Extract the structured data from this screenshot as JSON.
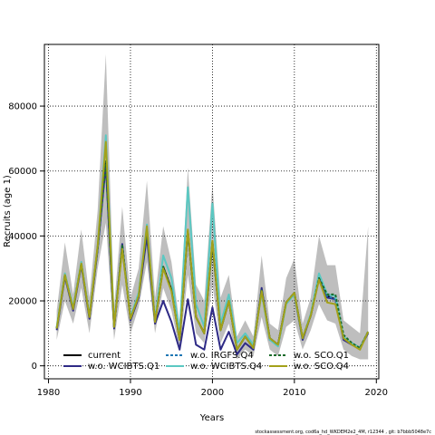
{
  "chart_data": {
    "type": "line",
    "title": "",
    "xlabel": "Years",
    "ylabel": "Recruits (age 1)",
    "xlim": [
      1979.5,
      2020.3
    ],
    "ylim": [
      -4000,
      99000
    ],
    "x_ticks": [
      1980,
      1990,
      2000,
      2010,
      2020
    ],
    "y_ticks": [
      0,
      20000,
      40000,
      60000,
      80000
    ],
    "grid": true,
    "legend_position": "bottom",
    "x": [
      1981,
      1982,
      1983,
      1984,
      1985,
      1986,
      1987,
      1988,
      1989,
      1990,
      1991,
      1992,
      1993,
      1994,
      1995,
      1996,
      1997,
      1998,
      1999,
      2000,
      2001,
      2002,
      2003,
      2004,
      2005,
      2006,
      2007,
      2008,
      2009,
      2010,
      2011,
      2012,
      2013,
      2014,
      2015,
      2016,
      2017,
      2018,
      2019
    ],
    "band": {
      "color": "#bebebe",
      "upper": [
        17000,
        38000,
        22000,
        42000,
        21000,
        48000,
        96000,
        18000,
        49000,
        21000,
        30000,
        57000,
        21000,
        43000,
        32000,
        13000,
        61000,
        25000,
        20000,
        56000,
        21000,
        28000,
        9000,
        14000,
        9000,
        34000,
        13000,
        11000,
        27000,
        33000,
        13000,
        21000,
        40000,
        31000,
        31000,
        14000,
        12000,
        10000,
        43000
      ],
      "lower": [
        8000,
        20000,
        13000,
        24000,
        10000,
        30000,
        44000,
        8000,
        25000,
        10000,
        18000,
        32000,
        10000,
        24000,
        17000,
        5000,
        28000,
        10000,
        7000,
        25000,
        7000,
        13000,
        2000,
        5000,
        3000,
        15000,
        5000,
        3000,
        12000,
        14000,
        5000,
        11000,
        19000,
        14000,
        13000,
        5000,
        3000,
        2000,
        2000
      ]
    },
    "series": [
      {
        "name": "current",
        "color": "#000000",
        "dash": "",
        "values": [
          11500,
          28000,
          17500,
          31500,
          15000,
          36500,
          63000,
          12000,
          37000,
          14500,
          21500,
          42000,
          13500,
          30500,
          23500,
          8000,
          41500,
          15000,
          10000,
          38000,
          11000,
          20000,
          5000,
          9000,
          5500,
          23500,
          8500,
          6500,
          19500,
          22500,
          8500,
          15500,
          27000,
          21500,
          20500,
          8500,
          7000,
          5500,
          10500
        ]
      },
      {
        "name": "w.o. WCIBTS.Q1",
        "color": "#2e2a86",
        "dash": "",
        "values": [
          11000,
          27500,
          17000,
          31000,
          14500,
          36000,
          62000,
          11500,
          37500,
          14000,
          21000,
          40000,
          13000,
          20000,
          13500,
          5000,
          20500,
          6500,
          5000,
          18000,
          5000,
          10500,
          3500,
          7000,
          5000,
          24000,
          8000,
          6500,
          19500,
          22000,
          8000,
          15500,
          27000,
          21000,
          20500,
          8000,
          6500,
          5500,
          10000
        ]
      },
      {
        "name": "w.o. IRGFS.Q4",
        "color": "#1f77b4",
        "dash": "3,2",
        "values": [
          11500,
          28000,
          17500,
          31500,
          15000,
          36500,
          63000,
          12000,
          37000,
          14500,
          21500,
          42000,
          13500,
          30500,
          23500,
          8000,
          41500,
          15000,
          10000,
          38000,
          11000,
          20000,
          5000,
          9000,
          5500,
          23500,
          8500,
          6500,
          19500,
          22500,
          8500,
          15500,
          27000,
          21500,
          20500,
          8500,
          7000,
          5500,
          10500
        ]
      },
      {
        "name": "w.o. WCIBTS.Q4",
        "color": "#5bc8c2",
        "dash": "",
        "values": [
          12000,
          28500,
          18000,
          32000,
          15500,
          37000,
          71000,
          12500,
          36500,
          15000,
          22500,
          43500,
          14000,
          34000,
          27000,
          10000,
          55000,
          19000,
          12000,
          50000,
          13000,
          22000,
          7000,
          10000,
          6500,
          22500,
          8000,
          6000,
          19000,
          22000,
          8500,
          16000,
          28500,
          22000,
          21500,
          9000,
          7000,
          5500,
          10500
        ]
      },
      {
        "name": "w.o. SCO.Q1",
        "color": "#1a6b2a",
        "dash": "3,2",
        "values": [
          11500,
          28000,
          17500,
          31500,
          15000,
          36500,
          63000,
          12000,
          37000,
          14500,
          21500,
          42000,
          13500,
          30500,
          23500,
          8000,
          41500,
          15000,
          10000,
          38000,
          11000,
          20000,
          5000,
          9000,
          5500,
          23500,
          8500,
          6500,
          19500,
          22500,
          8500,
          15500,
          27000,
          22000,
          22000,
          9500,
          7000,
          5500,
          10500
        ]
      },
      {
        "name": "w.o. SCO.Q4",
        "color": "#a3a11a",
        "dash": "",
        "values": [
          11500,
          28000,
          17500,
          31500,
          15000,
          37000,
          69000,
          12000,
          36000,
          14500,
          21500,
          43000,
          13500,
          30000,
          23000,
          8000,
          42000,
          15000,
          10000,
          38500,
          11000,
          20000,
          5000,
          9000,
          5500,
          23000,
          8500,
          6500,
          19500,
          22500,
          8500,
          15500,
          26500,
          19500,
          19000,
          8500,
          6500,
          5000,
          10500
        ]
      }
    ]
  },
  "footer": {
    "text": "stockassessment.org,  cod6a_hd_WKDEM2e2_4M,  r12344 ,  git: b7bbb5048e7c"
  }
}
